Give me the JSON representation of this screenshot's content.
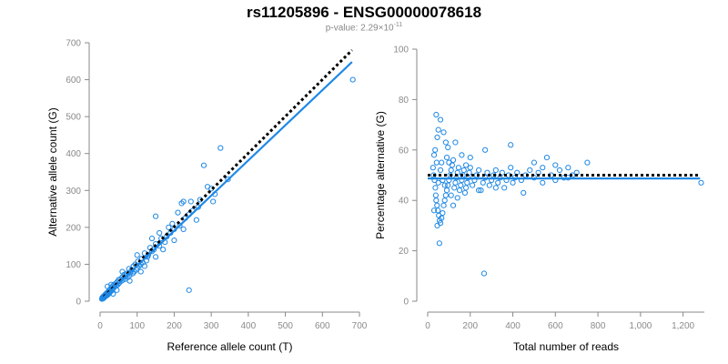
{
  "title": "rs11205896 - ENSG00000078618",
  "subtitle_prefix": "p-value: 2.29×10",
  "subtitle_exponent": "-11",
  "colors": {
    "points": "#1f88e5",
    "fit": "#1f88e5",
    "reference": "#000000",
    "axis": "#8a8a8a"
  },
  "chart_data": [
    {
      "type": "scatter",
      "xlabel": "Reference allele count (T)",
      "ylabel": "Alternative allele count (G)",
      "xlim": [
        0,
        700
      ],
      "ylim": [
        0,
        700
      ],
      "xticks": [
        0,
        100,
        200,
        300,
        400,
        500,
        600,
        700
      ],
      "yticks": [
        0,
        100,
        200,
        300,
        400,
        500,
        600,
        700
      ],
      "xtick_labels": [
        "0",
        "100",
        "200",
        "300",
        "400",
        "500",
        "600",
        "700"
      ],
      "ytick_labels": [
        "0",
        "100",
        "200",
        "300",
        "400",
        "500",
        "600",
        "700"
      ],
      "grid": false,
      "lines": [
        {
          "style": "dotted",
          "color": "#000000",
          "points": [
            [
              10,
              12
            ],
            [
              680,
              680
            ]
          ]
        },
        {
          "style": "solid",
          "color": "#1f88e5",
          "points": [
            [
              10,
              10
            ],
            [
              680,
              648
            ]
          ]
        }
      ],
      "points": [
        [
          682,
          600
        ],
        [
          240,
          30
        ],
        [
          325,
          415
        ],
        [
          280,
          368
        ],
        [
          345,
          330
        ],
        [
          300,
          305
        ],
        [
          310,
          290
        ],
        [
          270,
          275
        ],
        [
          265,
          255
        ],
        [
          250,
          245
        ],
        [
          240,
          235
        ],
        [
          230,
          225
        ],
        [
          220,
          265
        ],
        [
          215,
          205
        ],
        [
          200,
          195
        ],
        [
          195,
          210
        ],
        [
          190,
          185
        ],
        [
          180,
          175
        ],
        [
          175,
          160
        ],
        [
          165,
          170
        ],
        [
          160,
          150
        ],
        [
          150,
          155
        ],
        [
          145,
          140
        ],
        [
          140,
          135
        ],
        [
          135,
          145
        ],
        [
          130,
          125
        ],
        [
          128,
          120
        ],
        [
          125,
          110
        ],
        [
          120,
          130
        ],
        [
          115,
          105
        ],
        [
          112,
          115
        ],
        [
          110,
          100
        ],
        [
          105,
          95
        ],
        [
          102,
          108
        ],
        [
          100,
          90
        ],
        [
          98,
          85
        ],
        [
          95,
          100
        ],
        [
          92,
          80
        ],
        [
          90,
          95
        ],
        [
          88,
          75
        ],
        [
          85,
          85
        ],
        [
          82,
          78
        ],
        [
          80,
          70
        ],
        [
          78,
          88
        ],
        [
          75,
          65
        ],
        [
          72,
          75
        ],
        [
          70,
          68
        ],
        [
          68,
          60
        ],
        [
          65,
          72
        ],
        [
          62,
          58
        ],
        [
          60,
          65
        ],
        [
          58,
          55
        ],
        [
          55,
          60
        ],
        [
          52,
          50
        ],
        [
          50,
          58
        ],
        [
          48,
          45
        ],
        [
          46,
          52
        ],
        [
          44,
          42
        ],
        [
          42,
          48
        ],
        [
          40,
          40
        ],
        [
          38,
          45
        ],
        [
          36,
          35
        ],
        [
          35,
          42
        ],
        [
          33,
          30
        ],
        [
          32,
          38
        ],
        [
          30,
          28
        ],
        [
          28,
          34
        ],
        [
          27,
          25
        ],
        [
          26,
          30
        ],
        [
          25,
          22
        ],
        [
          24,
          28
        ],
        [
          23,
          20
        ],
        [
          22,
          25
        ],
        [
          21,
          18
        ],
        [
          20,
          24
        ],
        [
          19,
          16
        ],
        [
          18,
          22
        ],
        [
          17,
          15
        ],
        [
          16,
          20
        ],
        [
          15,
          14
        ],
        [
          14,
          18
        ],
        [
          13,
          12
        ],
        [
          12,
          16
        ],
        [
          11,
          10
        ],
        [
          10,
          14
        ],
        [
          9,
          8
        ],
        [
          8,
          12
        ],
        [
          7,
          7
        ],
        [
          6,
          10
        ],
        [
          5,
          6
        ],
        [
          30,
          45
        ],
        [
          45,
          30
        ],
        [
          60,
          80
        ],
        [
          80,
          55
        ],
        [
          100,
          125
        ],
        [
          110,
          80
        ],
        [
          120,
          95
        ],
        [
          140,
          170
        ],
        [
          150,
          120
        ],
        [
          160,
          185
        ],
        [
          170,
          140
        ],
        [
          185,
          200
        ],
        [
          200,
          165
        ],
        [
          210,
          240
        ],
        [
          225,
          195
        ],
        [
          245,
          270
        ],
        [
          260,
          220
        ],
        [
          290,
          310
        ],
        [
          305,
          270
        ],
        [
          150,
          230
        ],
        [
          225,
          270
        ],
        [
          20,
          40
        ],
        [
          35,
          20
        ]
      ]
    },
    {
      "type": "scatter",
      "xlabel": "Total number of reads",
      "ylabel": "Percentage alternative (G)",
      "xlim": [
        0,
        1300
      ],
      "ylim": [
        0,
        100
      ],
      "xticks": [
        0,
        200,
        400,
        600,
        800,
        1000,
        1200
      ],
      "yticks": [
        0,
        20,
        40,
        60,
        80,
        100
      ],
      "xtick_labels": [
        "0",
        "200",
        "400",
        "600",
        "800",
        "1,000",
        "1,200"
      ],
      "ytick_labels": [
        "0",
        "20",
        "40",
        "60",
        "80",
        "100"
      ],
      "grid": false,
      "lines": [
        {
          "style": "dotted",
          "color": "#000000",
          "points": [
            [
              0,
              50
            ],
            [
              1280,
              50
            ]
          ]
        },
        {
          "style": "solid",
          "color": "#1f88e5",
          "points": [
            [
              0,
              48.7
            ],
            [
              1280,
              48.7
            ]
          ]
        }
      ],
      "points": [
        [
          1285,
          47
        ],
        [
          265,
          11
        ],
        [
          55,
          23
        ],
        [
          40,
          74
        ],
        [
          60,
          72
        ],
        [
          75,
          67
        ],
        [
          50,
          68
        ],
        [
          85,
          63
        ],
        [
          45,
          65
        ],
        [
          95,
          61
        ],
        [
          35,
          60
        ],
        [
          30,
          58
        ],
        [
          42,
          55
        ],
        [
          25,
          53
        ],
        [
          28,
          50
        ],
        [
          32,
          48
        ],
        [
          36,
          45
        ],
        [
          38,
          42
        ],
        [
          40,
          40
        ],
        [
          44,
          38
        ],
        [
          48,
          36
        ],
        [
          52,
          34
        ],
        [
          56,
          32
        ],
        [
          60,
          31
        ],
        [
          65,
          33
        ],
        [
          70,
          35
        ],
        [
          75,
          38
        ],
        [
          80,
          40
        ],
        [
          85,
          42
        ],
        [
          90,
          44
        ],
        [
          95,
          46
        ],
        [
          100,
          48
        ],
        [
          105,
          50
        ],
        [
          110,
          52
        ],
        [
          115,
          54
        ],
        [
          120,
          56
        ],
        [
          125,
          45
        ],
        [
          130,
          47
        ],
        [
          135,
          49
        ],
        [
          140,
          51
        ],
        [
          145,
          53
        ],
        [
          150,
          44
        ],
        [
          155,
          46
        ],
        [
          160,
          48
        ],
        [
          165,
          50
        ],
        [
          170,
          52
        ],
        [
          175,
          43
        ],
        [
          180,
          45
        ],
        [
          185,
          47
        ],
        [
          190,
          49
        ],
        [
          195,
          51
        ],
        [
          200,
          53
        ],
        [
          210,
          46
        ],
        [
          220,
          48
        ],
        [
          230,
          50
        ],
        [
          240,
          52
        ],
        [
          250,
          44
        ],
        [
          260,
          47
        ],
        [
          270,
          49
        ],
        [
          280,
          51
        ],
        [
          290,
          46
        ],
        [
          300,
          48
        ],
        [
          310,
          50
        ],
        [
          320,
          52
        ],
        [
          330,
          47
        ],
        [
          340,
          49
        ],
        [
          350,
          51
        ],
        [
          360,
          45
        ],
        [
          370,
          48
        ],
        [
          380,
          50
        ],
        [
          390,
          53
        ],
        [
          400,
          47
        ],
        [
          410,
          49
        ],
        [
          420,
          51
        ],
        [
          440,
          48
        ],
        [
          460,
          50
        ],
        [
          480,
          52
        ],
        [
          500,
          49
        ],
        [
          520,
          51
        ],
        [
          540,
          47
        ],
        [
          560,
          57
        ],
        [
          580,
          50
        ],
        [
          600,
          48
        ],
        [
          620,
          52
        ],
        [
          640,
          49
        ],
        [
          660,
          53
        ],
        [
          680,
          50
        ],
        [
          700,
          51
        ],
        [
          750,
          55
        ],
        [
          390,
          62
        ],
        [
          270,
          60
        ],
        [
          130,
          63
        ],
        [
          160,
          58
        ],
        [
          200,
          57
        ],
        [
          90,
          57
        ],
        [
          60,
          52
        ],
        [
          70,
          48
        ],
        [
          80,
          46
        ],
        [
          110,
          42
        ],
        [
          120,
          38
        ],
        [
          140,
          41
        ],
        [
          30,
          36
        ],
        [
          45,
          30
        ],
        [
          50,
          47
        ],
        [
          65,
          55
        ],
        [
          100,
          55
        ],
        [
          180,
          54
        ],
        [
          240,
          44
        ],
        [
          320,
          45
        ],
        [
          450,
          43
        ],
        [
          500,
          55
        ],
        [
          600,
          54
        ],
        [
          660,
          49
        ],
        [
          540,
          53
        ]
      ]
    }
  ]
}
